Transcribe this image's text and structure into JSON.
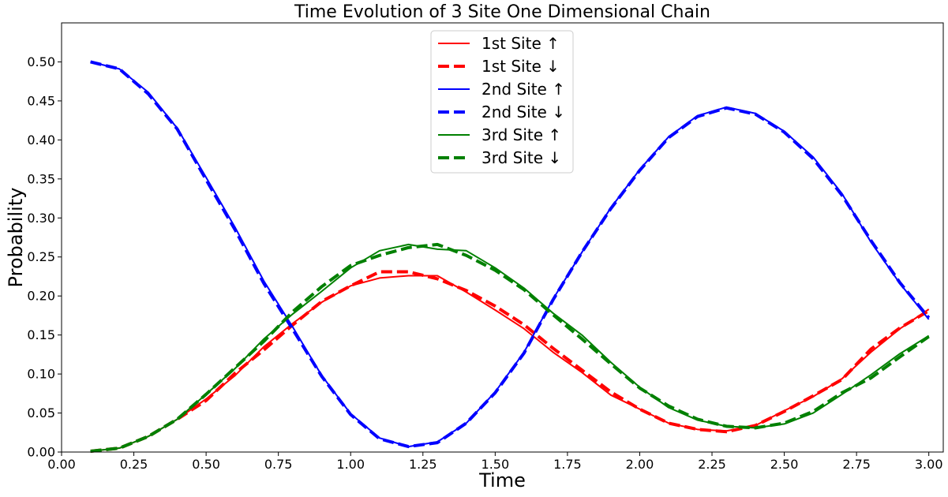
{
  "chart_data": {
    "type": "line",
    "title": "Time Evolution of 3 Site One Dimensional Chain",
    "xlabel": "Time",
    "ylabel": "Probability",
    "xlim": [
      0.0,
      3.05
    ],
    "ylim": [
      0.0,
      0.55
    ],
    "xticks": [
      "0.00",
      "0.25",
      "0.50",
      "0.75",
      "1.00",
      "1.25",
      "1.50",
      "1.75",
      "2.00",
      "2.25",
      "2.50",
      "2.75",
      "3.00"
    ],
    "xtick_values": [
      0.0,
      0.25,
      0.5,
      0.75,
      1.0,
      1.25,
      1.5,
      1.75,
      2.0,
      2.25,
      2.5,
      2.75,
      3.0
    ],
    "yticks": [
      "0.00",
      "0.05",
      "0.10",
      "0.15",
      "0.20",
      "0.25",
      "0.30",
      "0.35",
      "0.40",
      "0.45",
      "0.50"
    ],
    "ytick_values": [
      0.0,
      0.05,
      0.1,
      0.15,
      0.2,
      0.25,
      0.3,
      0.35,
      0.4,
      0.45,
      0.5
    ],
    "grid": false,
    "legend_position": "top-center",
    "x": [
      0.1,
      0.2,
      0.3,
      0.4,
      0.5,
      0.6,
      0.7,
      0.8,
      0.9,
      1.0,
      1.1,
      1.2,
      1.3,
      1.4,
      1.5,
      1.6,
      1.7,
      1.8,
      1.9,
      2.0,
      2.1,
      2.2,
      2.3,
      2.4,
      2.5,
      2.6,
      2.7,
      2.8,
      2.9,
      3.0
    ],
    "series": [
      {
        "name": "1st Site ↑",
        "color": "#ff0000",
        "style": "solid",
        "values": [
          0.001,
          0.005,
          0.02,
          0.042,
          0.068,
          0.098,
          0.135,
          0.165,
          0.192,
          0.213,
          0.223,
          0.226,
          0.226,
          0.205,
          0.182,
          0.158,
          0.128,
          0.102,
          0.073,
          0.055,
          0.037,
          0.029,
          0.027,
          0.034,
          0.053,
          0.071,
          0.094,
          0.128,
          0.158,
          0.183
        ]
      },
      {
        "name": "1st Site ↓",
        "color": "#ff0000",
        "style": "dashed",
        "values": [
          0.001,
          0.005,
          0.02,
          0.042,
          0.066,
          0.101,
          0.131,
          0.163,
          0.193,
          0.213,
          0.231,
          0.231,
          0.222,
          0.207,
          0.187,
          0.163,
          0.133,
          0.105,
          0.077,
          0.055,
          0.037,
          0.029,
          0.026,
          0.034,
          0.052,
          0.072,
          0.093,
          0.132,
          0.159,
          0.181
        ]
      },
      {
        "name": "2nd Site ↑",
        "color": "#0000ff",
        "style": "solid",
        "values": [
          0.5,
          0.491,
          0.461,
          0.415,
          0.352,
          0.288,
          0.219,
          0.16,
          0.098,
          0.049,
          0.018,
          0.007,
          0.013,
          0.037,
          0.077,
          0.128,
          0.196,
          0.256,
          0.313,
          0.362,
          0.404,
          0.431,
          0.442,
          0.434,
          0.411,
          0.378,
          0.331,
          0.269,
          0.216,
          0.17
        ]
      },
      {
        "name": "2nd Site ↓",
        "color": "#0000ff",
        "style": "dashed",
        "values": [
          0.5,
          0.491,
          0.459,
          0.414,
          0.349,
          0.285,
          0.216,
          0.157,
          0.097,
          0.048,
          0.017,
          0.007,
          0.012,
          0.037,
          0.076,
          0.127,
          0.195,
          0.256,
          0.312,
          0.361,
          0.403,
          0.43,
          0.441,
          0.433,
          0.41,
          0.376,
          0.329,
          0.271,
          0.217,
          0.172
        ]
      },
      {
        "name": "3rd Site ↑",
        "color": "#008000",
        "style": "solid",
        "values": [
          0.001,
          0.005,
          0.02,
          0.042,
          0.074,
          0.107,
          0.145,
          0.177,
          0.206,
          0.236,
          0.258,
          0.266,
          0.26,
          0.258,
          0.236,
          0.21,
          0.178,
          0.15,
          0.115,
          0.083,
          0.057,
          0.041,
          0.033,
          0.031,
          0.036,
          0.05,
          0.074,
          0.099,
          0.126,
          0.149
        ]
      },
      {
        "name": "3rd Site ↓",
        "color": "#008000",
        "style": "dashed",
        "values": [
          0.001,
          0.005,
          0.02,
          0.042,
          0.074,
          0.108,
          0.142,
          0.18,
          0.212,
          0.239,
          0.252,
          0.262,
          0.266,
          0.252,
          0.233,
          0.208,
          0.176,
          0.145,
          0.113,
          0.082,
          0.059,
          0.042,
          0.033,
          0.031,
          0.037,
          0.052,
          0.076,
          0.095,
          0.122,
          0.148
        ]
      }
    ]
  }
}
